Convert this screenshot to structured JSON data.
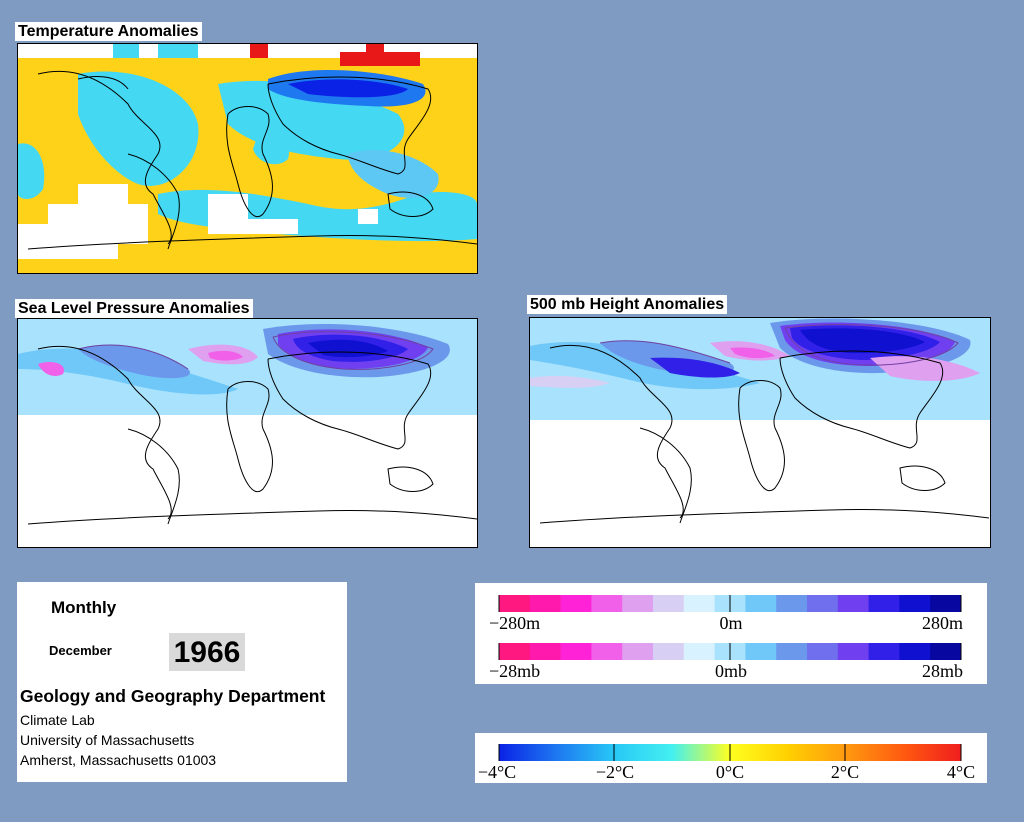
{
  "maps": {
    "temperature": {
      "title": "Temperature Anomalies"
    },
    "slp": {
      "title": "Sea Level Pressure Anomalies"
    },
    "height": {
      "title": "500 mb Height Anomalies"
    }
  },
  "info": {
    "period": "Monthly",
    "month": "December",
    "year": "1966",
    "department": "Geology and Geography Department",
    "lines": [
      "Climate Lab",
      "University of Massachusetts",
      "Amherst, Massachusetts 01003"
    ]
  },
  "legends": {
    "height": {
      "labels": [
        "−280m",
        "0m",
        "280m"
      ],
      "colors": [
        "#ff1880",
        "#ff1aad",
        "#ff22d6",
        "#f060e8",
        "#e0a0f0",
        "#d8d0f4",
        "#d8f2ff",
        "#a8e2fc",
        "#70c8f8",
        "#6c98ec",
        "#7070ee",
        "#7040f0",
        "#3020e8",
        "#1010d0",
        "#0808a0"
      ]
    },
    "pressure": {
      "labels": [
        "−28mb",
        "0mb",
        "28mb"
      ],
      "colors": [
        "#ff1880",
        "#ff1aad",
        "#ff22d6",
        "#f060e8",
        "#e0a0f0",
        "#d8d0f4",
        "#d8f2ff",
        "#a8e2fc",
        "#70c8f8",
        "#6c98ec",
        "#7070ee",
        "#7040f0",
        "#3020e8",
        "#1010d0",
        "#0808a0"
      ]
    },
    "temperature": {
      "labels": [
        "−4°C",
        "−2°C",
        "0°C",
        "2°C",
        "4°C"
      ],
      "gradient": [
        "#0a22e6",
        "#1e78f0",
        "#28c8f6",
        "#44f0f0",
        "#ffff20",
        "#ffd000",
        "#ff9a10",
        "#ff5a10",
        "#f01e1e"
      ]
    }
  },
  "colors": {
    "background": "#7f9bc1",
    "ocean_blue": "#a8e2fc",
    "pressure_low": "#1010d0",
    "warm": "#ffcf10"
  }
}
